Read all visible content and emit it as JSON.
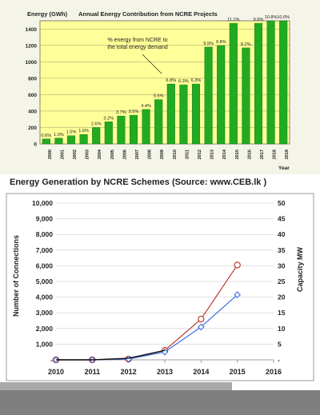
{
  "caption": "Energy Generation by NCRE Schemes (Source: www.CEB.lk )",
  "colors": {
    "chart1_bg": "#ffff99",
    "bar": "#22aa22",
    "bar_dark": "#0f6f0f",
    "line_red": "#c0392b",
    "line_blue": "#3c6ee0",
    "line_black": "#111111"
  },
  "chart_data": [
    {
      "type": "bar",
      "title": "Annual Energy Contribution from NCRE Projects",
      "ylabel": "Energy (GWh)",
      "xlabel": "Year",
      "annotation": "% energy from NCRE to the total energy demand",
      "ylim": [
        0,
        1500
      ],
      "yticks": [
        0,
        200,
        400,
        600,
        800,
        1000,
        1200,
        1400
      ],
      "grid": true,
      "categories": [
        "2000",
        "2001",
        "2002",
        "2003",
        "2004",
        "2005",
        "2006",
        "2007",
        "2008",
        "2009",
        "2010",
        "2011",
        "2012",
        "2013",
        "2014",
        "2015",
        "2016",
        "2017",
        "2018",
        "2019"
      ],
      "values": [
        60,
        70,
        100,
        115,
        200,
        270,
        340,
        350,
        420,
        540,
        730,
        720,
        730,
        1180,
        1200,
        1470,
        1170,
        1470,
        1500,
        1500
      ],
      "data_labels": [
        "0.6%",
        "1.0%",
        "1.5%",
        "1.6%",
        "2.6%",
        "3.2%",
        "3.7%",
        "3.5%",
        "4.4%",
        "5.5%",
        "6.8%",
        "6.3%",
        "6.3%",
        "9.9%",
        "9.8%",
        "11.1%",
        "8.2%",
        "9.9%",
        "10.8%",
        "10.0%"
      ]
    },
    {
      "type": "line",
      "ylabel": "Number of Connections",
      "y2label": "Capacity MW",
      "x": [
        "2010",
        "2011",
        "2012",
        "2013",
        "2014",
        "2015",
        "2016"
      ],
      "xlim": [
        2010,
        2016
      ],
      "ylim": [
        0,
        10000
      ],
      "yticks": [
        "-",
        "1,000",
        "2,000",
        "3,000",
        "4,000",
        "5,000",
        "6,000",
        "7,000",
        "8,000",
        "9,000",
        "10,000"
      ],
      "y2lim": [
        0,
        50
      ],
      "y2ticks": [
        "-",
        "5",
        "10",
        "15",
        "20",
        "25",
        "30",
        "35",
        "40",
        "45",
        "50"
      ],
      "grid": true,
      "series": [
        {
          "marker": "circle",
          "axis": "left",
          "x": [
            2010,
            2011,
            2012,
            2013,
            2014,
            2015
          ],
          "values": [
            0,
            0,
            50,
            600,
            2600,
            6050
          ]
        },
        {
          "marker": "diamond",
          "axis": "left",
          "x": [
            2010,
            2011,
            2012,
            2013,
            2014,
            2015
          ],
          "values": [
            0,
            0,
            50,
            500,
            2100,
            4150
          ]
        },
        {
          "marker": "none",
          "axis": "left",
          "x": [
            2010,
            2011,
            2012,
            2013
          ],
          "values": [
            0,
            0,
            100,
            600
          ]
        }
      ]
    }
  ]
}
